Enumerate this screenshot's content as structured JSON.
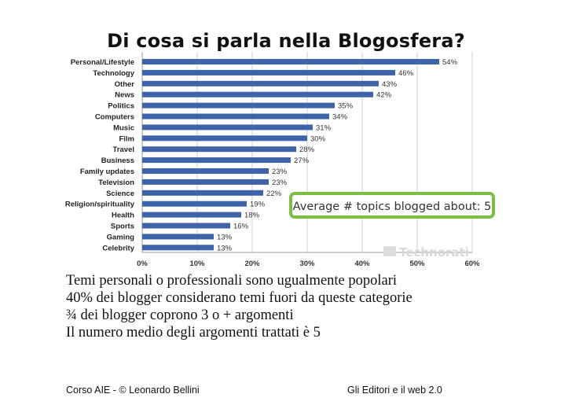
{
  "slide": {
    "title": "Di cosa si parla nella Blogosfera?",
    "bullets": [
      "Temi personali o professionali sono ugualmente popolari",
      "40% dei blogger considerano temi fuori da queste categorie",
      "¾ dei blogger coprono 3 o + argomenti",
      "Il numero medio degli argomenti trattati è 5"
    ],
    "footer_left": "Corso AIE - © Leonardo Bellini",
    "footer_right": "Gli Editori e il web 2.0"
  },
  "chart_data": {
    "type": "bar",
    "orientation": "horizontal",
    "categories": [
      "Personal/Lifestyle",
      "Technology",
      "Other",
      "News",
      "Politics",
      "Computers",
      "Music",
      "Film",
      "Travel",
      "Business",
      "Family updates",
      "Television",
      "Science",
      "Religion/spirituality",
      "Health",
      "Sports",
      "Gaming",
      "Celebrity"
    ],
    "values": [
      54,
      46,
      43,
      42,
      35,
      34,
      31,
      30,
      28,
      27,
      23,
      23,
      22,
      19,
      18,
      16,
      13,
      13
    ],
    "value_suffix": "%",
    "xlim": [
      0,
      60
    ],
    "xticks": [
      "0%",
      "10%",
      "20%",
      "30%",
      "40%",
      "50%",
      "60%"
    ],
    "grid": true,
    "bar_color": "#3d63a8",
    "callout": "Average # topics blogged about: 5",
    "callout_border_color": "#7bc043",
    "watermark": "Technorati"
  }
}
